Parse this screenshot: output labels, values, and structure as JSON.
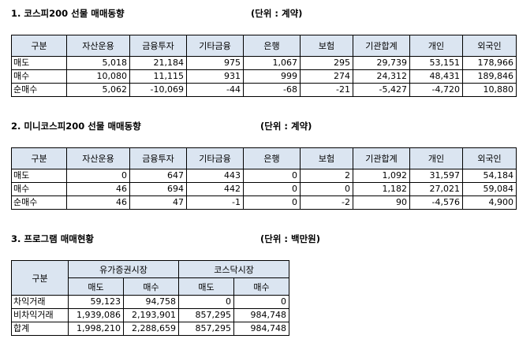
{
  "section1": {
    "title": "1. 코스피200 선물 매매동향",
    "unit": "(단위 : 계약)",
    "headers": [
      "구분",
      "자산운용",
      "금융투자",
      "기타금융",
      "은행",
      "보험",
      "기관합계",
      "개인",
      "외국인"
    ],
    "rows": [
      [
        "매도",
        "5,018",
        "21,184",
        "975",
        "1,067",
        "295",
        "29,739",
        "53,151",
        "178,966"
      ],
      [
        "매수",
        "10,080",
        "11,115",
        "931",
        "999",
        "274",
        "24,312",
        "48,431",
        "189,846"
      ],
      [
        "순매수",
        "5,062",
        "-10,069",
        "-44",
        "-68",
        "-21",
        "-5,427",
        "-4,720",
        "10,880"
      ]
    ]
  },
  "section2": {
    "title": "2. 미니코스피200 선물 매매동향",
    "unit": "(단위 : 계약)",
    "headers": [
      "구분",
      "자산운용",
      "금융투자",
      "기타금융",
      "은행",
      "보험",
      "기관합계",
      "개인",
      "외국인"
    ],
    "rows": [
      [
        "매도",
        "0",
        "647",
        "443",
        "0",
        "2",
        "1,092",
        "31,597",
        "54,184"
      ],
      [
        "매수",
        "46",
        "694",
        "442",
        "0",
        "0",
        "1,182",
        "27,021",
        "59,084"
      ],
      [
        "순매수",
        "46",
        "47",
        "-1",
        "0",
        "-2",
        "90",
        "-4,576",
        "4,900"
      ]
    ]
  },
  "section3": {
    "title": "3. 프로그램 매매현황",
    "unit": "(단위 : 백만원)",
    "header_group": "구분",
    "markets": [
      "유가증권시장",
      "코스닥시장"
    ],
    "subheaders": [
      "매도",
      "매수",
      "매도",
      "매수"
    ],
    "rows": [
      [
        "차익거래",
        "59,123",
        "94,758",
        "0",
        "0"
      ],
      [
        "비차익거래",
        "1,939,086",
        "2,193,901",
        "857,295",
        "984,748"
      ],
      [
        "합계",
        "1,998,210",
        "2,288,659",
        "857,295",
        "984,748"
      ]
    ]
  }
}
